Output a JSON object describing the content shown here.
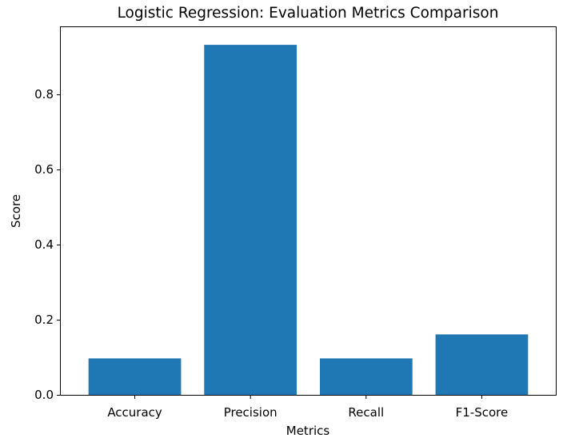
{
  "chart_data": {
    "type": "bar",
    "title": "Logistic Regression: Evaluation Metrics Comparison",
    "xlabel": "Metrics",
    "ylabel": "Score",
    "categories": [
      "Accuracy",
      "Precision",
      "Recall",
      "F1-Score"
    ],
    "values": [
      0.097,
      0.932,
      0.097,
      0.161
    ],
    "ylim": [
      0,
      0.979
    ],
    "yticks": [
      0.0,
      0.2,
      0.4,
      0.6,
      0.8
    ],
    "ytick_labels": [
      "0.0",
      "0.2",
      "0.4",
      "0.6",
      "0.8"
    ],
    "bar_color": "#1f77b4",
    "grid": false,
    "legend": "none"
  }
}
